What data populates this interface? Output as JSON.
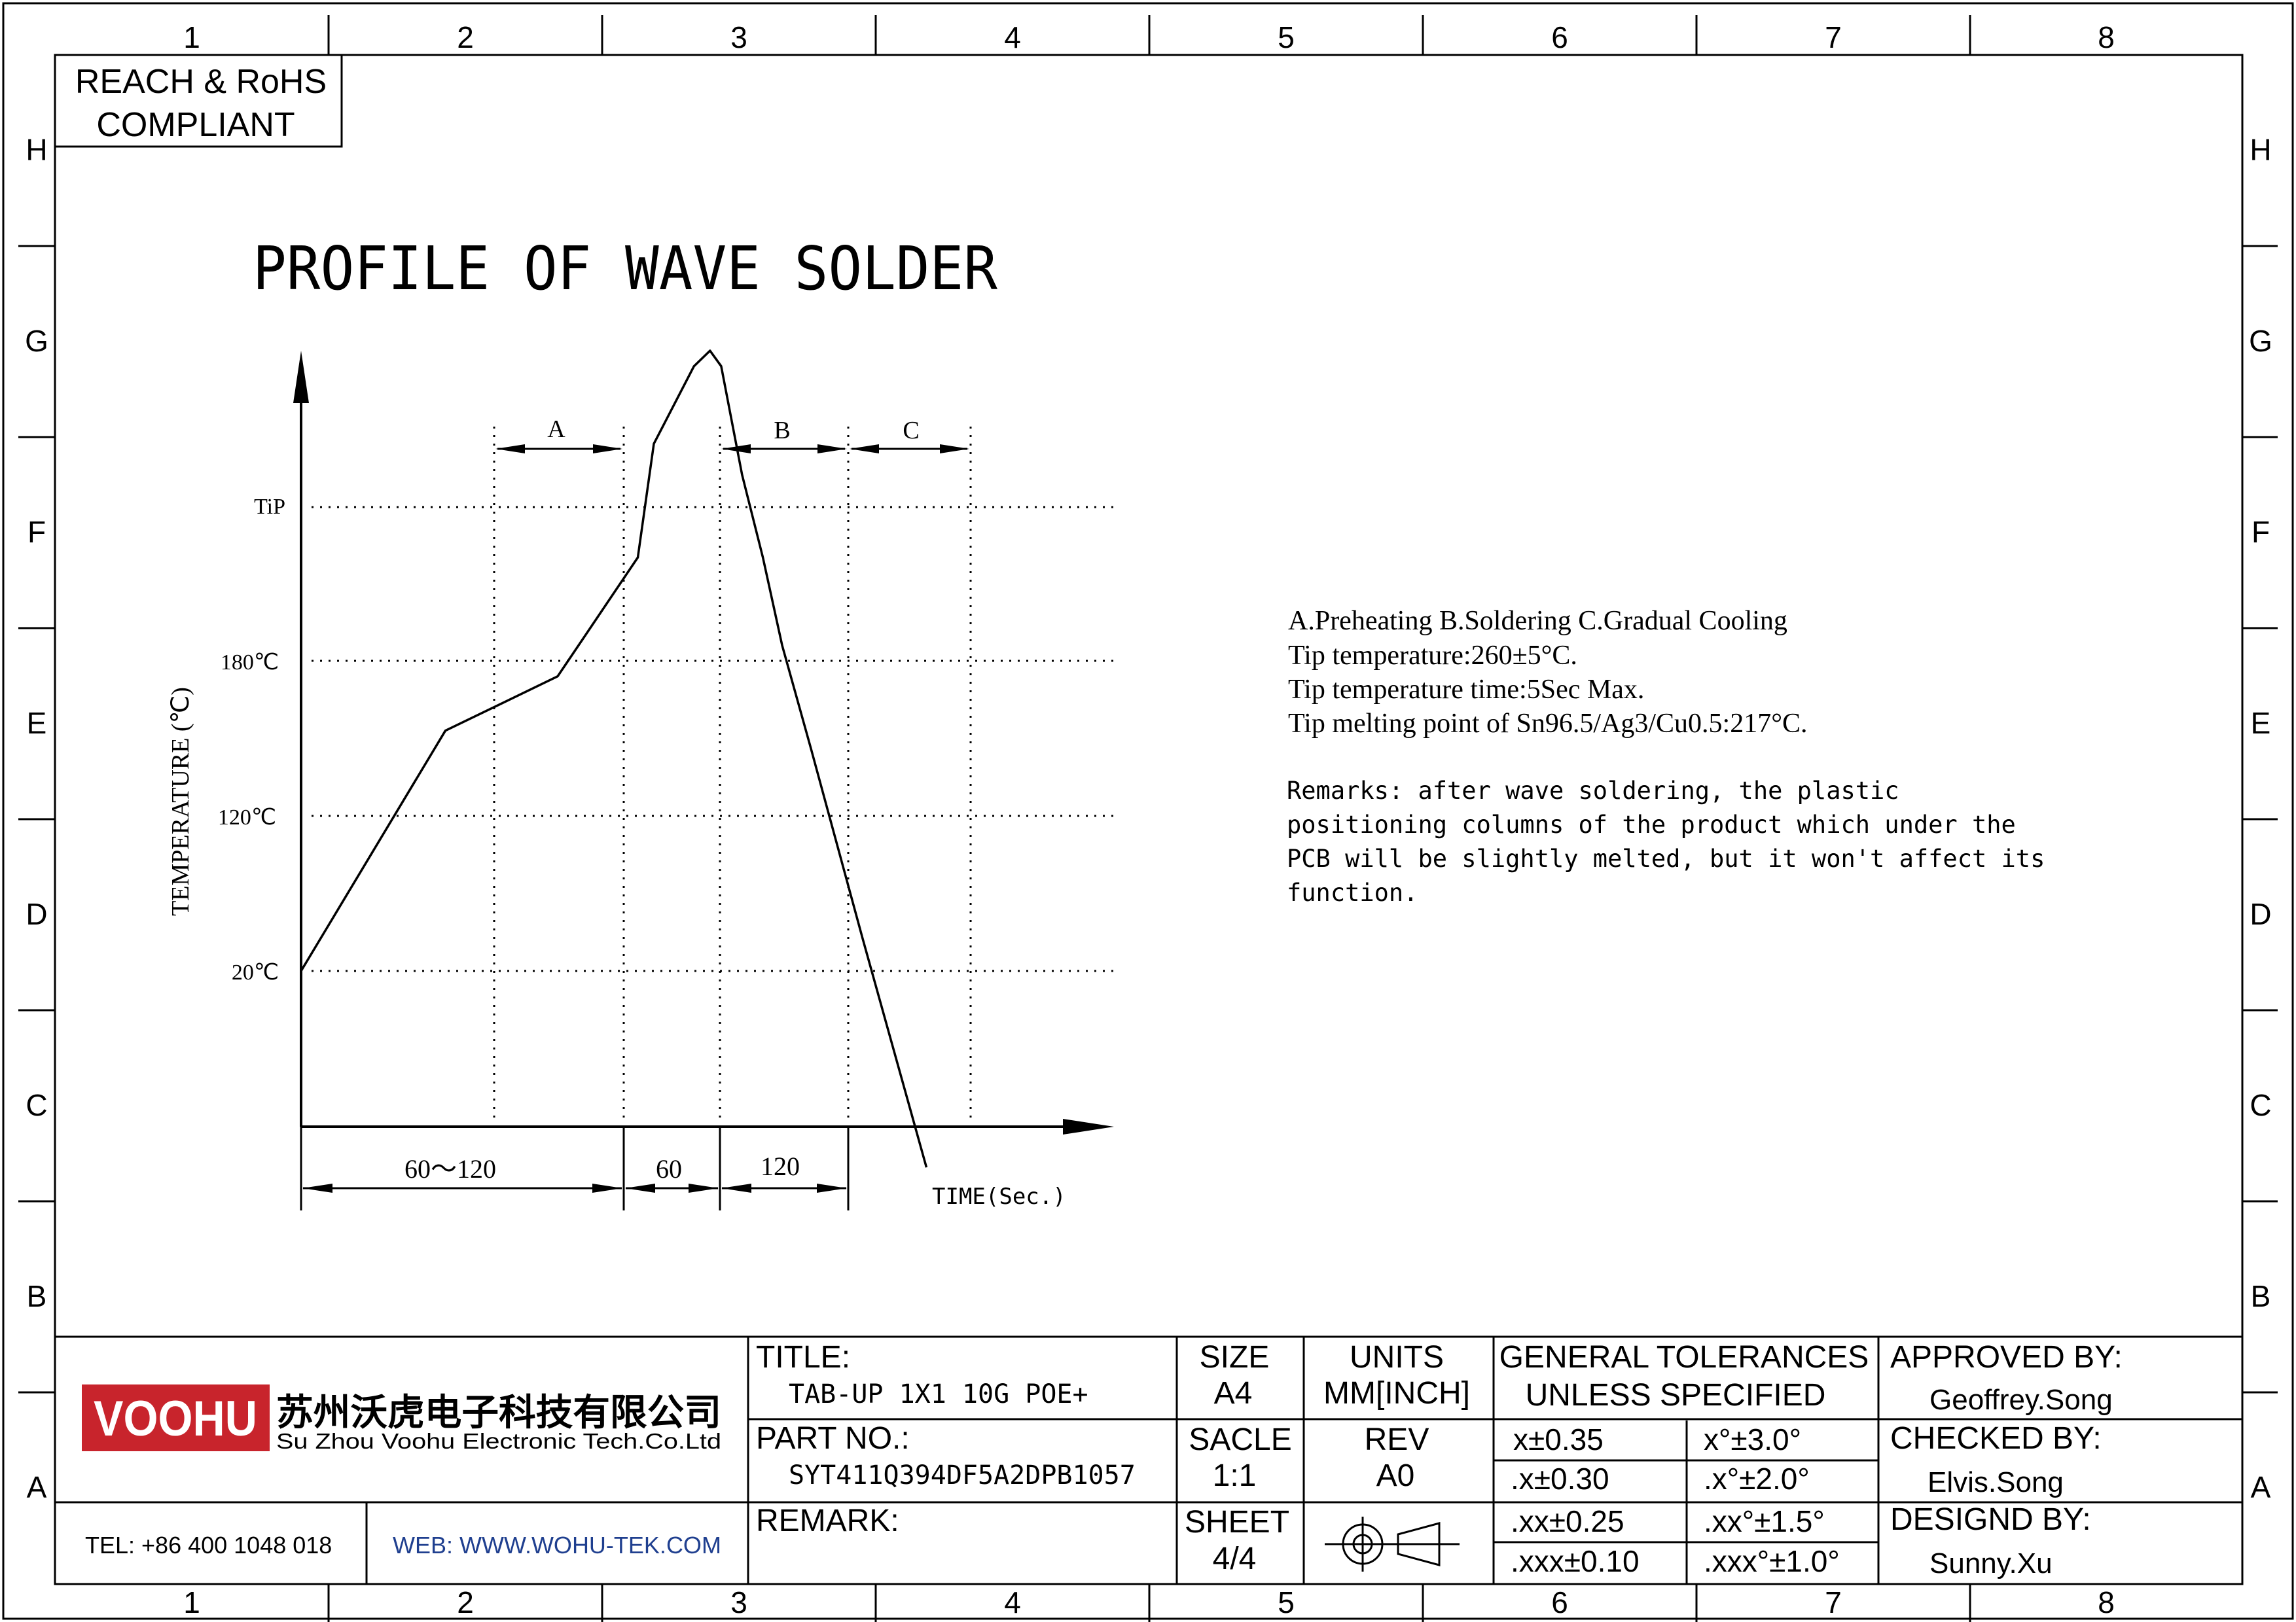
{
  "frame": {
    "columns": [
      "1",
      "2",
      "3",
      "4",
      "5",
      "6",
      "7",
      "8"
    ],
    "rows": [
      "H",
      "G",
      "F",
      "E",
      "D",
      "C",
      "B",
      "A"
    ]
  },
  "compliance": {
    "line1": "REACH & RoHS",
    "line2": "COMPLIANT"
  },
  "drawing_title": "PROFILE OF WAVE SOLDER",
  "chart_data": {
    "type": "line",
    "ylabel": "TEMPERATURE (℃)",
    "xlabel": "TIME(Sec.)",
    "y_ticks": [
      "TiP",
      "180℃",
      "120℃",
      "20℃"
    ],
    "zones": [
      {
        "label": "A",
        "name": "Preheating"
      },
      {
        "label": "B",
        "name": "Soldering"
      },
      {
        "label": "C",
        "name": "Gradual Cooling"
      }
    ],
    "durations": [
      "60～120",
      "60",
      "120"
    ],
    "profile": [
      {
        "time": 0,
        "temp_c": 20
      },
      {
        "time": 90,
        "temp_c": 113
      },
      {
        "time": 160,
        "temp_c": 134
      },
      {
        "time": 210,
        "temp_c": 180
      },
      {
        "time": 220,
        "temp_c": 224
      },
      {
        "time": 245,
        "temp_c": 254
      },
      {
        "time": 255,
        "temp_c": 260
      },
      {
        "time": 262,
        "temp_c": 254
      },
      {
        "time": 275,
        "temp_c": 212
      },
      {
        "time": 288,
        "temp_c": 180
      },
      {
        "time": 300,
        "temp_c": 146
      },
      {
        "time": 318,
        "temp_c": 106
      },
      {
        "time": 350,
        "temp_c": 33
      },
      {
        "time": 390,
        "temp_c": -56
      }
    ]
  },
  "notes": {
    "lines": [
      "A.Preheating  B.Soldering  C.Gradual Cooling",
      "Tip temperature:260±5°C.",
      "Tip temperature time:5Sec Max.",
      "Tip melting point of Sn96.5/Ag3/Cu0.5:217°C."
    ],
    "remarks": [
      "Remarks: after wave soldering, the plastic",
      "positioning columns of the product  which under the",
      "PCB will be slightly melted, but it won't affect its",
      "function."
    ]
  },
  "title_block": {
    "logo_text": "VOOHU",
    "company_cn": "苏州沃虎电子科技有限公司",
    "company_en": "Su Zhou Voohu Electronic Tech.Co.Ltd",
    "tel": "TEL: +86 400 1048 018",
    "web": "WEB: WWW.WOHU-TEK.COM",
    "title_label": "TITLE:",
    "title_value": "TAB-UP 1X1 10G POE+",
    "part_label": "PART NO.:",
    "part_value": "SYT411Q394DF5A2DPB1057",
    "remark_label": "REMARK:",
    "size_label": "SIZE",
    "size_value": "A4",
    "units_label": "UNITS",
    "units_value": "MM[INCH]",
    "scale_label": "SACLE",
    "scale_value": "1:1",
    "rev_label": "REV",
    "rev_value": "A0",
    "sheet_label": "SHEET",
    "sheet_value": "4/4",
    "tol_label_1": "GENERAL TOLERANCES",
    "tol_label_2": "UNLESS SPECIFIED",
    "tolerances": [
      [
        "x±0.35",
        "x°±3.0°"
      ],
      [
        ".x±0.30",
        ".x°±2.0°"
      ],
      [
        ".xx±0.25",
        ".xx°±1.5°"
      ],
      [
        ".xxx±0.10",
        ".xxx°±1.0°"
      ]
    ],
    "approved_label": "APPROVED BY:",
    "approved_value": "Geoffrey.Song",
    "checked_label": "CHECKED BY:",
    "checked_value": "Elvis.Song",
    "designed_label": "DESIGND BY:",
    "designed_value": "Sunny.Xu"
  },
  "colors": {
    "line": "#000000",
    "logo": "#c8242c",
    "web": "#1f3f8f"
  }
}
